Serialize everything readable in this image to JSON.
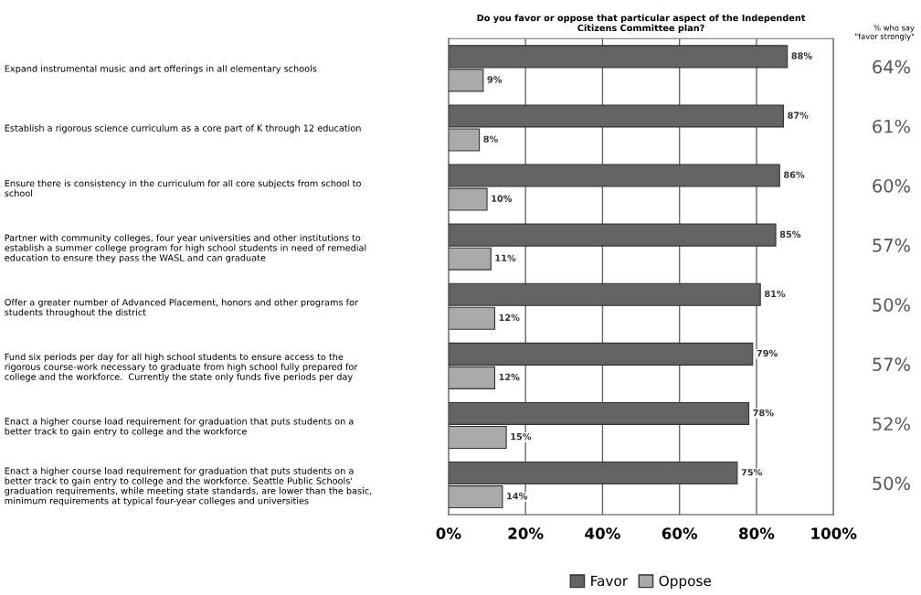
{
  "chart_data": {
    "type": "bar",
    "orientation": "horizontal",
    "title": "Do you favor or oppose that particular aspect of the Independent\nCitizens Committee plan?",
    "categories": [
      "Expand instrumental music and art offerings in all elementary schools",
      "Establish a rigorous science curriculum as a core part of K through 12 education",
      "Ensure there is consistency in the curriculum for all core subjects from school to\nschool",
      "Partner with community colleges, four year universities and other institutions to\nestablish a summer college program for high school students in need of remedial\neducation to ensure they pass the WASL and can graduate",
      "Offer a greater number of Advanced Placement, honors and other programs for\nstudents throughout the district",
      "Fund six periods per day for all high school students to ensure access to the\nrigorous course-work necessary to graduate from high school fully prepared for\ncollege and the workforce.  Currently the state only funds five periods per day",
      "Enact a higher course load requirement for graduation that puts students on a\nbetter track to gain entry to college and the workforce",
      "Enact a higher course load requirement for graduation that puts students on a\nbetter track to gain entry to college and the workforce. Seattle Public Schools'\ngraduation requirements, while meeting state standards, are lower than the basic,\nminimum requirements at typical four-year colleges and universities"
    ],
    "series": [
      {
        "name": "Favor",
        "color": "#636363",
        "values": [
          88,
          87,
          86,
          85,
          81,
          79,
          78,
          75
        ],
        "value_labels": [
          "88%",
          "87%",
          "86%",
          "85%",
          "81%",
          "79%",
          "78%",
          "75%"
        ]
      },
      {
        "name": "Oppose",
        "color": "#aaaaaa",
        "values": [
          9,
          8,
          10,
          11,
          12,
          12,
          15,
          14
        ],
        "value_labels": [
          "9%",
          "8%",
          "10%",
          "11%",
          "12%",
          "12%",
          "15%",
          "14%"
        ]
      }
    ],
    "xlim": [
      0,
      100
    ],
    "xticks": [
      {
        "value": 0,
        "label": "0%"
      },
      {
        "value": 20,
        "label": "20%"
      },
      {
        "value": 40,
        "label": "40%"
      },
      {
        "value": 60,
        "label": "60%"
      },
      {
        "value": 80,
        "label": "80%"
      },
      {
        "value": 100,
        "label": "100%"
      }
    ],
    "grid": "x",
    "legend": "bottom",
    "annotations": [
      "% who say\n\"favor strongly\"",
      "64%",
      "61%",
      "60%",
      "57%",
      "50%",
      "57%",
      "52%",
      "50%"
    ]
  }
}
